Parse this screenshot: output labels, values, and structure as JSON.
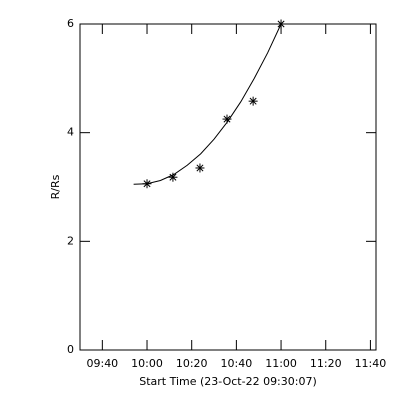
{
  "chart_data": {
    "type": "scatter",
    "xlabel": "Start Time (23-Oct-22 09:30:07)",
    "ylabel": "R/Rs",
    "xlim": [
      30,
      162.5
    ],
    "ylim": [
      0,
      6
    ],
    "xticks": [
      {
        "value": 40,
        "label": "09:40"
      },
      {
        "value": 60,
        "label": "10:00"
      },
      {
        "value": 80,
        "label": "10:20"
      },
      {
        "value": 100,
        "label": "10:40"
      },
      {
        "value": 120,
        "label": "11:00"
      },
      {
        "value": 140,
        "label": "11:20"
      },
      {
        "value": 160,
        "label": "11:40"
      }
    ],
    "yticks": [
      0,
      2,
      4,
      6
    ],
    "series": [
      {
        "kind": "points",
        "color": "#000000",
        "x": [
          60,
          71.6,
          83.7,
          95.8,
          107.5,
          120
        ],
        "values": [
          3.06,
          3.18,
          3.35,
          4.25,
          4.58,
          6.0
        ]
      },
      {
        "kind": "line",
        "color": "#000000",
        "x": [
          54,
          60,
          66,
          72,
          78,
          84,
          90,
          96,
          102,
          108,
          114,
          120
        ],
        "values": [
          3.05,
          3.06,
          3.12,
          3.23,
          3.4,
          3.61,
          3.88,
          4.2,
          4.57,
          5.0,
          5.47,
          6.0
        ]
      }
    ]
  }
}
